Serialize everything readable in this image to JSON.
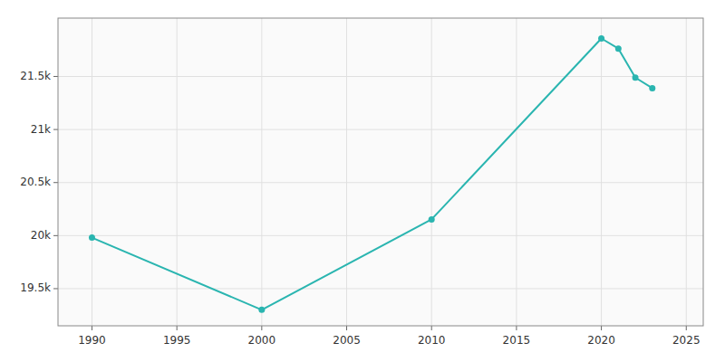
{
  "chart_data": {
    "type": "line",
    "x": [
      1990,
      2000,
      2010,
      2020,
      2021,
      2022,
      2023
    ],
    "values": [
      19981,
      19301,
      20153,
      21858,
      21763,
      21489,
      21390
    ],
    "color": "#2ab5b0",
    "marker": "circle",
    "xlim": [
      1988,
      2026
    ],
    "ylim": [
      19150,
      22050
    ],
    "xticks": [
      1990,
      1995,
      2000,
      2005,
      2010,
      2015,
      2020,
      2025
    ],
    "yticks": [
      {
        "value": 19500,
        "label": "19.5k"
      },
      {
        "value": 20000,
        "label": "20k"
      },
      {
        "value": 20500,
        "label": "20.5k"
      },
      {
        "value": 21000,
        "label": "21k"
      },
      {
        "value": 21500,
        "label": "21.5k"
      }
    ],
    "grid": true
  }
}
